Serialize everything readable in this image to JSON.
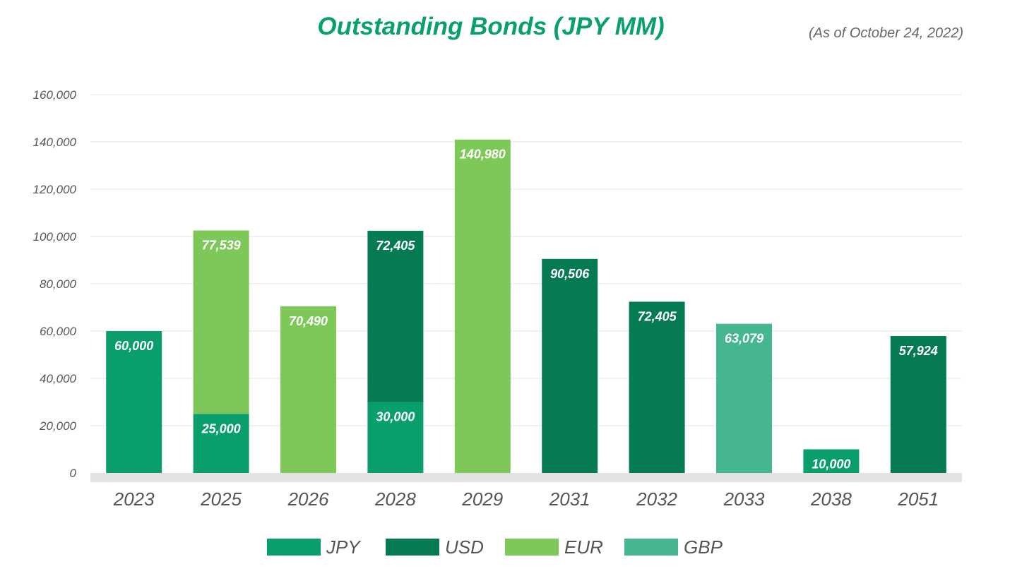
{
  "chart_data": {
    "type": "bar",
    "stacked": true,
    "title": "Outstanding Bonds (JPY MM)",
    "subtitle": "(As of October 24, 2022)",
    "categories": [
      "2023",
      "2025",
      "2026",
      "2028",
      "2029",
      "2031",
      "2032",
      "2033",
      "2038",
      "2051"
    ],
    "series": [
      {
        "name": "JPY",
        "color": "#0a9e6e",
        "values": [
          60000,
          25000,
          0,
          30000,
          0,
          0,
          0,
          0,
          10000,
          0
        ]
      },
      {
        "name": "USD",
        "color": "#067a55",
        "values": [
          0,
          0,
          0,
          72405,
          0,
          90506,
          72405,
          0,
          0,
          57924
        ]
      },
      {
        "name": "EUR",
        "color": "#7ec85a",
        "values": [
          0,
          77539,
          70490,
          0,
          140980,
          0,
          0,
          0,
          0,
          0
        ]
      },
      {
        "name": "GBP",
        "color": "#45b592",
        "values": [
          0,
          0,
          0,
          0,
          0,
          0,
          0,
          63079,
          0,
          0
        ]
      }
    ],
    "data_labels": [
      [
        "60,000",
        "",
        "",
        ""
      ],
      [
        "25,000",
        "",
        "77,539",
        ""
      ],
      [
        "",
        "",
        "70,490",
        ""
      ],
      [
        "30,000",
        "72,405",
        "",
        ""
      ],
      [
        "",
        "",
        "140,980",
        ""
      ],
      [
        "",
        "90,506",
        "",
        ""
      ],
      [
        "",
        "72,405",
        "",
        ""
      ],
      [
        "",
        "",
        "",
        "63,079"
      ],
      [
        "10,000",
        "",
        "",
        ""
      ],
      [
        "",
        "57,924",
        "",
        ""
      ]
    ],
    "yticks": [
      "0",
      "20,000",
      "40,000",
      "60,000",
      "80,000",
      "100,000",
      "120,000",
      "140,000",
      "160,000"
    ],
    "ylim": [
      0,
      160000
    ],
    "grid": true,
    "legend": "bottom"
  }
}
